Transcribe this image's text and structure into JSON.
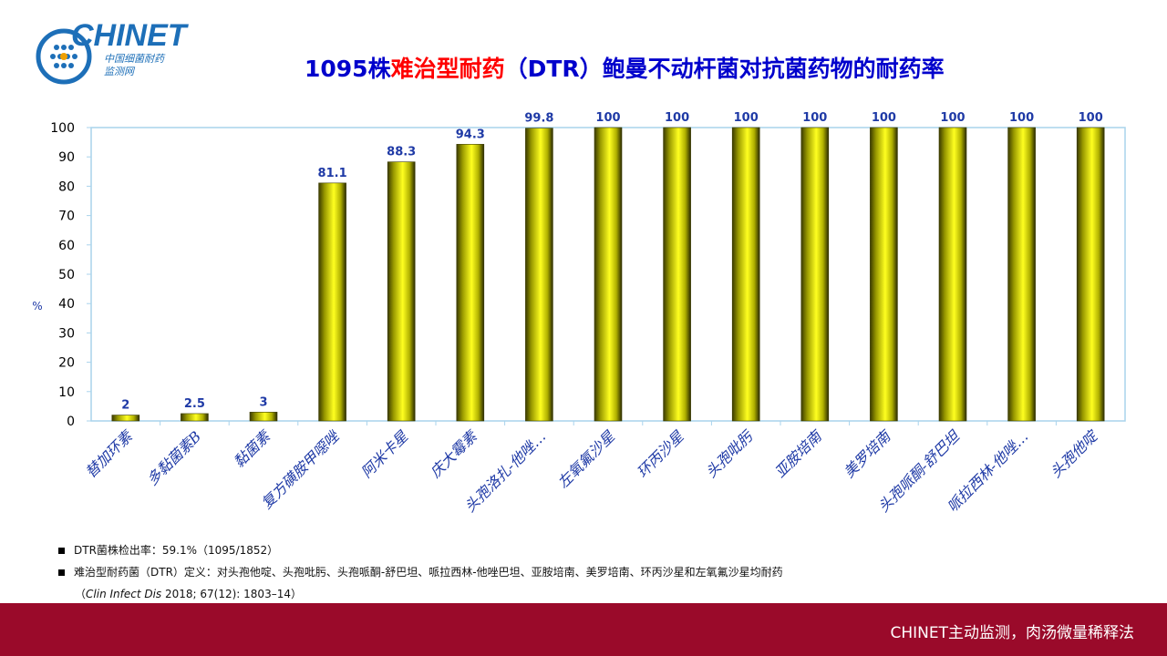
{
  "logo": {
    "brand": "CHINET",
    "subtitle_cn": "中国细菌耐药",
    "subtitle_cn2": "监测网"
  },
  "title": {
    "part1": "1095株",
    "part2": "难治型耐药",
    "part3": "（DTR）鲍曼不动杆菌对抗菌药物的耐药率"
  },
  "colors": {
    "title_blue": "#0000cc",
    "title_red": "#ff0000",
    "bar": "#e6e600",
    "label_blue": "#1f3aa6",
    "footer": "#9a0a2a"
  },
  "chart_data": {
    "type": "bar",
    "categories": [
      "替加环素",
      "多黏菌素B",
      "黏菌素",
      "复方磺胺甲噁唑",
      "阿米卡星",
      "庆大霉素",
      "头孢洛扎-他唑…",
      "左氧氟沙星",
      "环丙沙星",
      "头孢吡肟",
      "亚胺培南",
      "美罗培南",
      "头孢哌酮-舒巴坦",
      "哌拉西林-他唑…",
      "头孢他啶"
    ],
    "values": [
      2,
      2.5,
      3,
      81.1,
      88.3,
      94.3,
      99.8,
      100,
      100,
      100,
      100,
      100,
      100,
      100,
      100
    ],
    "data_labels": [
      "2",
      "2.5",
      "3",
      "81.1",
      "88.3",
      "94.3",
      "99.8",
      "100",
      "100",
      "100",
      "100",
      "100",
      "100",
      "100",
      "100"
    ],
    "ylabel": "%",
    "ylim": [
      0,
      100
    ],
    "yticks": [
      "0",
      "10",
      "20",
      "30",
      "40",
      "50",
      "60",
      "70",
      "80",
      "90",
      "100"
    ],
    "grid": false
  },
  "notes": {
    "line1": "DTR菌株检出率：59.1%（1095/1852）",
    "line2": "难治型耐药菌（DTR）定义：对头孢他啶、头孢吡肟、头孢哌酮-舒巴坦、哌拉西林-他唑巴坦、亚胺培南、美罗培南、环丙沙星和左氧氟沙星均耐药",
    "line3_open": "（",
    "line3_journal": "Clin Infect Dis",
    "line3_rest": " 2018; 67(12): 1803–14）"
  },
  "footer": {
    "text": "CHINET主动监测，肉汤微量稀释法"
  }
}
